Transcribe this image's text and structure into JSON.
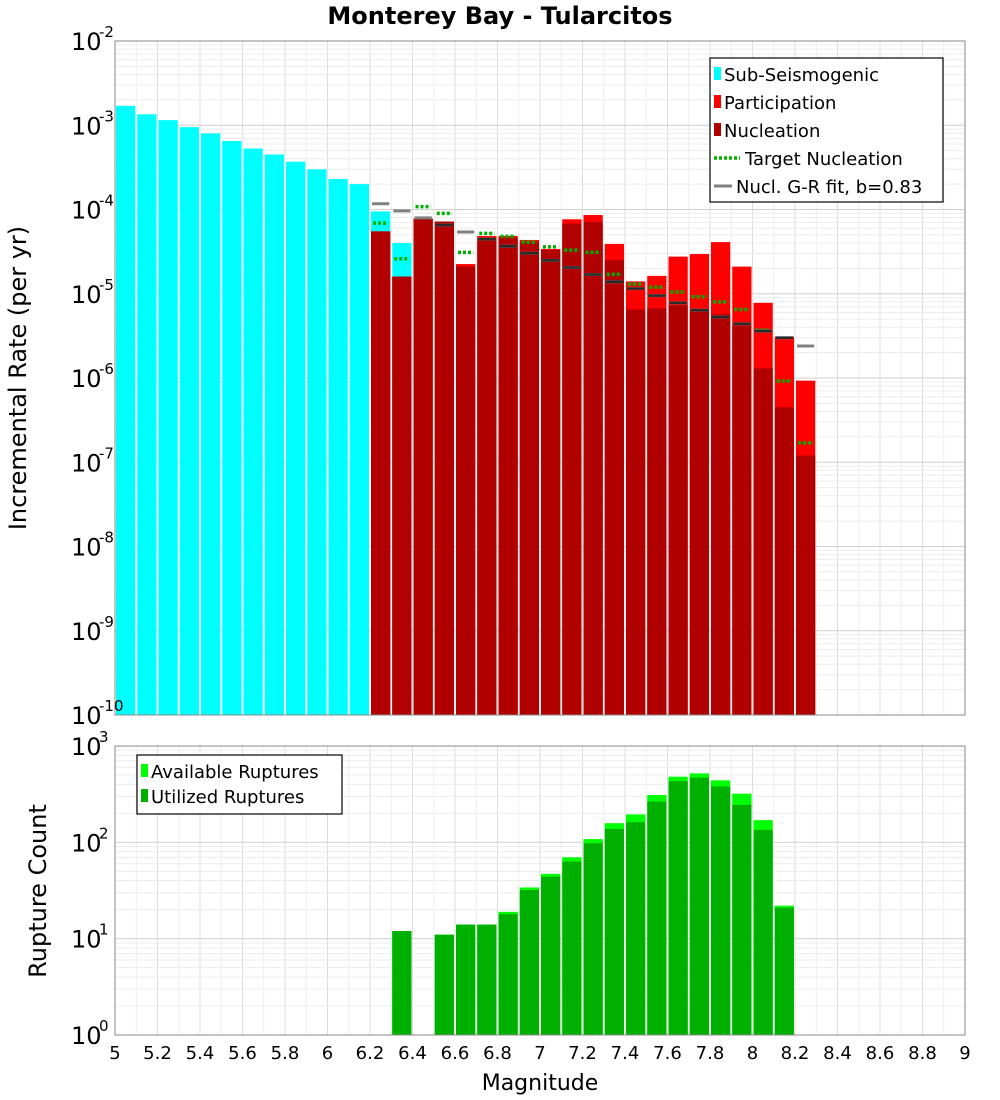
{
  "chart_data": [
    {
      "type": "bar",
      "title": "Monterey Bay - Tularcitos",
      "xlabel": "",
      "ylabel": "Incremental Rate (per yr)",
      "yscale": "log",
      "ylim_exponents": [
        -10,
        -2
      ],
      "xlim": [
        5,
        9
      ],
      "bin_width": 0.1,
      "grid": true,
      "legend_position": "top-right",
      "legend": [
        {
          "label": "Sub-Seismogenic",
          "kind": "bar",
          "color": "#00ffff"
        },
        {
          "label": "Participation",
          "kind": "bar",
          "color": "#ff0000"
        },
        {
          "label": "Nucleation",
          "kind": "bar",
          "color": "#b00000"
        },
        {
          "label": "Target Nucleation",
          "kind": "dotted",
          "color": "#00b000"
        },
        {
          "label": "Nucl. G-R fit, b=0.83",
          "kind": "line",
          "color": "#808080"
        }
      ],
      "series": [
        {
          "name": "Sub-Seismogenic",
          "color": "#00ffff",
          "x": [
            5.05,
            5.15,
            5.25,
            5.35,
            5.45,
            5.55,
            5.65,
            5.75,
            5.85,
            5.95,
            6.05,
            6.15,
            6.25,
            6.35
          ],
          "values": [
            0.0017,
            0.00135,
            0.00115,
            0.00095,
            0.0008,
            0.00065,
            0.00053,
            0.00045,
            0.00037,
            0.0003,
            0.00023,
            0.0002,
            9.5e-05,
            4e-05
          ]
        },
        {
          "name": "Participation",
          "color": "#ff0000",
          "x": [
            6.25,
            6.35,
            6.45,
            6.55,
            6.65,
            6.75,
            6.85,
            6.95,
            7.05,
            7.15,
            7.25,
            7.35,
            7.45,
            7.55,
            7.65,
            7.75,
            7.85,
            7.95,
            8.05,
            8.15,
            8.25
          ],
          "values": [
            5.5e-05,
            1.6e-05,
            7.8e-05,
            7.2e-05,
            2.25e-05,
            4.85e-05,
            4.85e-05,
            4.35e-05,
            3.4e-05,
            7.65e-05,
            8.6e-05,
            3.9e-05,
            1.4e-05,
            1.63e-05,
            2.76e-05,
            2.96e-05,
            4.1e-05,
            2.1e-05,
            7.8e-06,
            3.1e-06,
            9.3e-07
          ]
        },
        {
          "name": "Nucleation",
          "color": "#b00000",
          "x": [
            6.25,
            6.35,
            6.45,
            6.55,
            6.65,
            6.75,
            6.85,
            6.95,
            7.05,
            7.15,
            7.25,
            7.35,
            7.45,
            7.55,
            7.65,
            7.75,
            7.85,
            7.95,
            8.05,
            8.15,
            8.25
          ],
          "values": [
            5.5e-05,
            1.6e-05,
            7.8e-05,
            7.2e-05,
            2.1e-05,
            4.6e-05,
            4.6e-05,
            4.1e-05,
            3.3e-05,
            6.8e-05,
            7.1e-05,
            2.5e-05,
            6.5e-06,
            6.7e-06,
            7.3e-06,
            6.4e-06,
            5.7e-06,
            4.2e-06,
            1.3e-06,
            4.5e-07,
            1.2e-07
          ]
        },
        {
          "name": "Target Nucleation",
          "color": "#00b000",
          "x": [
            6.25,
            6.35,
            6.45,
            6.55,
            6.65,
            6.75,
            6.85,
            6.95,
            7.05,
            7.15,
            7.25,
            7.35,
            7.45,
            7.55,
            7.65,
            7.75,
            7.85,
            7.95,
            8.05,
            8.15,
            8.25
          ],
          "values": [
            6.9e-05,
            2.6e-05,
            0.000108,
            9e-05,
            3.1e-05,
            5.2e-05,
            4.8e-05,
            4.1e-05,
            3.6e-05,
            3.3e-05,
            3.1e-05,
            1.7e-05,
            1.3e-05,
            1.2e-05,
            1.05e-05,
            9.2e-06,
            8e-06,
            6.5e-06,
            3.7e-06,
            9.2e-07,
            1.7e-07
          ]
        },
        {
          "name": "Nucl. G-R fit, b=0.83",
          "color": "#808080",
          "x": [
            6.25,
            6.35,
            6.45,
            6.55,
            6.65,
            6.75,
            6.85,
            6.95,
            7.05,
            7.15,
            7.25,
            7.35,
            7.45,
            7.55,
            7.65,
            7.75,
            7.85,
            7.95,
            8.05,
            8.15,
            8.25
          ],
          "values": [
            0.000117,
            9.64e-05,
            7.95e-05,
            6.55e-05,
            5.4e-05,
            4.45e-05,
            3.66e-05,
            3.02e-05,
            2.49e-05,
            2.05e-05,
            1.69e-05,
            1.39e-05,
            1.15e-05,
            9.5e-06,
            7.8e-06,
            6.4e-06,
            5.3e-06,
            4.4e-06,
            3.6e-06,
            3e-06,
            2.4e-06
          ]
        }
      ]
    },
    {
      "type": "bar",
      "title": "",
      "xlabel": "Magnitude",
      "ylabel": "Rupture Count",
      "yscale": "log",
      "ylim_exponents": [
        0,
        3
      ],
      "xlim": [
        5,
        9
      ],
      "bin_width": 0.1,
      "grid": true,
      "legend_position": "top-left",
      "legend": [
        {
          "label": "Available Ruptures",
          "kind": "bar",
          "color": "#00ff00"
        },
        {
          "label": "Utilized Ruptures",
          "kind": "bar",
          "color": "#00b000"
        }
      ],
      "series": [
        {
          "name": "Available Ruptures",
          "color": "#00ff00",
          "x": [
            6.35,
            6.55,
            6.65,
            6.75,
            6.85,
            6.95,
            7.05,
            7.15,
            7.25,
            7.35,
            7.45,
            7.55,
            7.65,
            7.75,
            7.85,
            7.95,
            8.05,
            8.15
          ],
          "values": [
            12,
            11,
            14,
            14,
            19,
            34,
            47,
            70,
            108,
            158,
            195,
            310,
            480,
            520,
            440,
            320,
            170,
            22
          ]
        },
        {
          "name": "Utilized Ruptures",
          "color": "#00b000",
          "x": [
            6.35,
            6.55,
            6.65,
            6.75,
            6.85,
            6.95,
            7.05,
            7.15,
            7.25,
            7.35,
            7.45,
            7.55,
            7.65,
            7.75,
            7.85,
            7.95,
            8.05,
            8.15
          ],
          "values": [
            12,
            11,
            14,
            14,
            18,
            32,
            44,
            63,
            98,
            138,
            162,
            265,
            430,
            470,
            380,
            245,
            135,
            21
          ]
        }
      ],
      "xticks": [
        "5",
        "5.2",
        "5.4",
        "5.6",
        "5.8",
        "6",
        "6.2",
        "6.4",
        "6.6",
        "6.8",
        "7",
        "7.2",
        "7.4",
        "7.6",
        "7.8",
        "8",
        "8.2",
        "8.4",
        "8.6",
        "8.8",
        "9"
      ]
    }
  ]
}
